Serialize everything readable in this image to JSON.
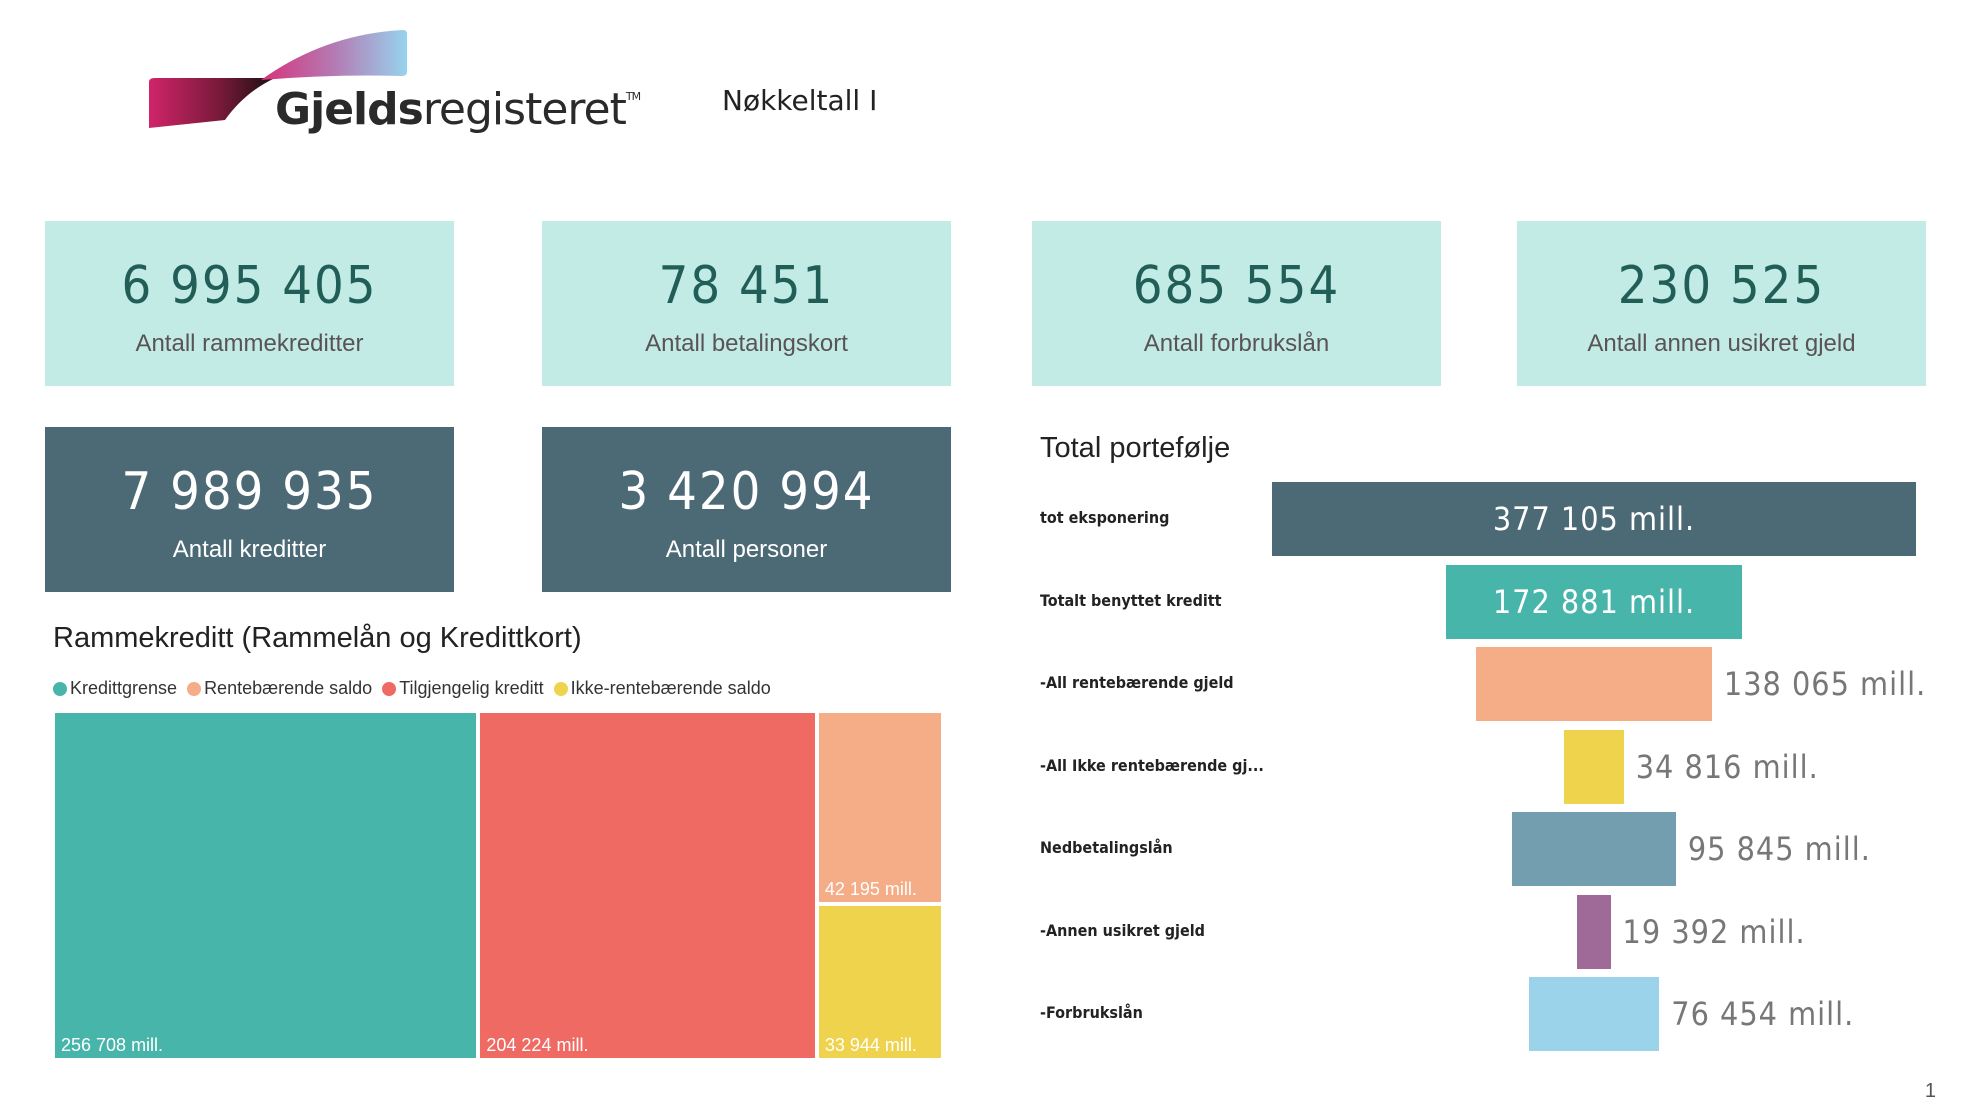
{
  "header": {
    "logo_bold": "Gjelds",
    "logo_light": "registeret",
    "logo_tm": "TM",
    "page_title": "Nøkkeltall I"
  },
  "kpi_cards": [
    {
      "value": "6 995 405",
      "label": "Antall rammekreditter",
      "style": "light"
    },
    {
      "value": "78 451",
      "label": "Antall betalingskort",
      "style": "light"
    },
    {
      "value": "685 554",
      "label": "Antall forbrukslån",
      "style": "light"
    },
    {
      "value": "230 525",
      "label": "Antall annen usikret gjeld",
      "style": "light"
    },
    {
      "value": "7 989 935",
      "label": "Antall kreditter",
      "style": "dark"
    },
    {
      "value": "3 420 994",
      "label": "Antall personer",
      "style": "dark"
    }
  ],
  "colors": {
    "kpi_light_bg": "#c2ebe6",
    "kpi_dark_bg": "#4c6a75",
    "teal": "#48b5ab",
    "red": "#ee6a62",
    "orange": "#f4ad87",
    "yellow": "#efd34d",
    "slate": "#4c6a75",
    "steel": "#739eb0",
    "purple": "#a06a98",
    "sky": "#9bd3eb"
  },
  "chart_data": [
    {
      "type": "treemap",
      "title": "Rammekreditt (Rammelån og Kredittkort)",
      "unit": "mill.",
      "legend": [
        {
          "name": "Kredittgrense",
          "color": "#48b5ab"
        },
        {
          "name": "Rentebærende saldo",
          "color": "#f4ad87"
        },
        {
          "name": "Tilgjengelig kreditt",
          "color": "#ee6a62"
        },
        {
          "name": "Ikke-rentebærende saldo",
          "color": "#efd34d"
        }
      ],
      "legend_position": "top-left",
      "categories": [
        "Kredittgrense",
        "Tilgjengelig kreditt",
        "Rentebærende saldo",
        "Ikke-rentebærende saldo"
      ],
      "values": [
        256708,
        204224,
        42195,
        33944
      ],
      "labels": [
        "256 708 mill.",
        "204 224 mill.",
        "42 195 mill.",
        "33 944 mill."
      ],
      "colors": [
        "#48b5ab",
        "#ee6a62",
        "#f4ad87",
        "#efd34d"
      ]
    },
    {
      "type": "funnel",
      "title": "Total portefølje",
      "unit": "mill.",
      "categories": [
        "tot eksponering",
        "Totalt benyttet kreditt",
        "-All rentebærende gjeld",
        "-All Ikke rentebærende gj...",
        "Nedbetalingslån",
        "-Annen usikret gjeld",
        "-Forbrukslån"
      ],
      "values": [
        377105,
        172881,
        138065,
        34816,
        95845,
        19392,
        76454
      ],
      "labels": [
        "377 105 mill.",
        "172 881 mill.",
        "138 065 mill.",
        "34 816 mill.",
        "95 845 mill.",
        "19 392 mill.",
        "76 454 mill."
      ],
      "colors": [
        "#4c6a75",
        "#48b5ab",
        "#f4ad87",
        "#efd34d",
        "#739eb0",
        "#a06a98",
        "#9bd3eb"
      ]
    }
  ],
  "footer": {
    "page_number": "1"
  }
}
